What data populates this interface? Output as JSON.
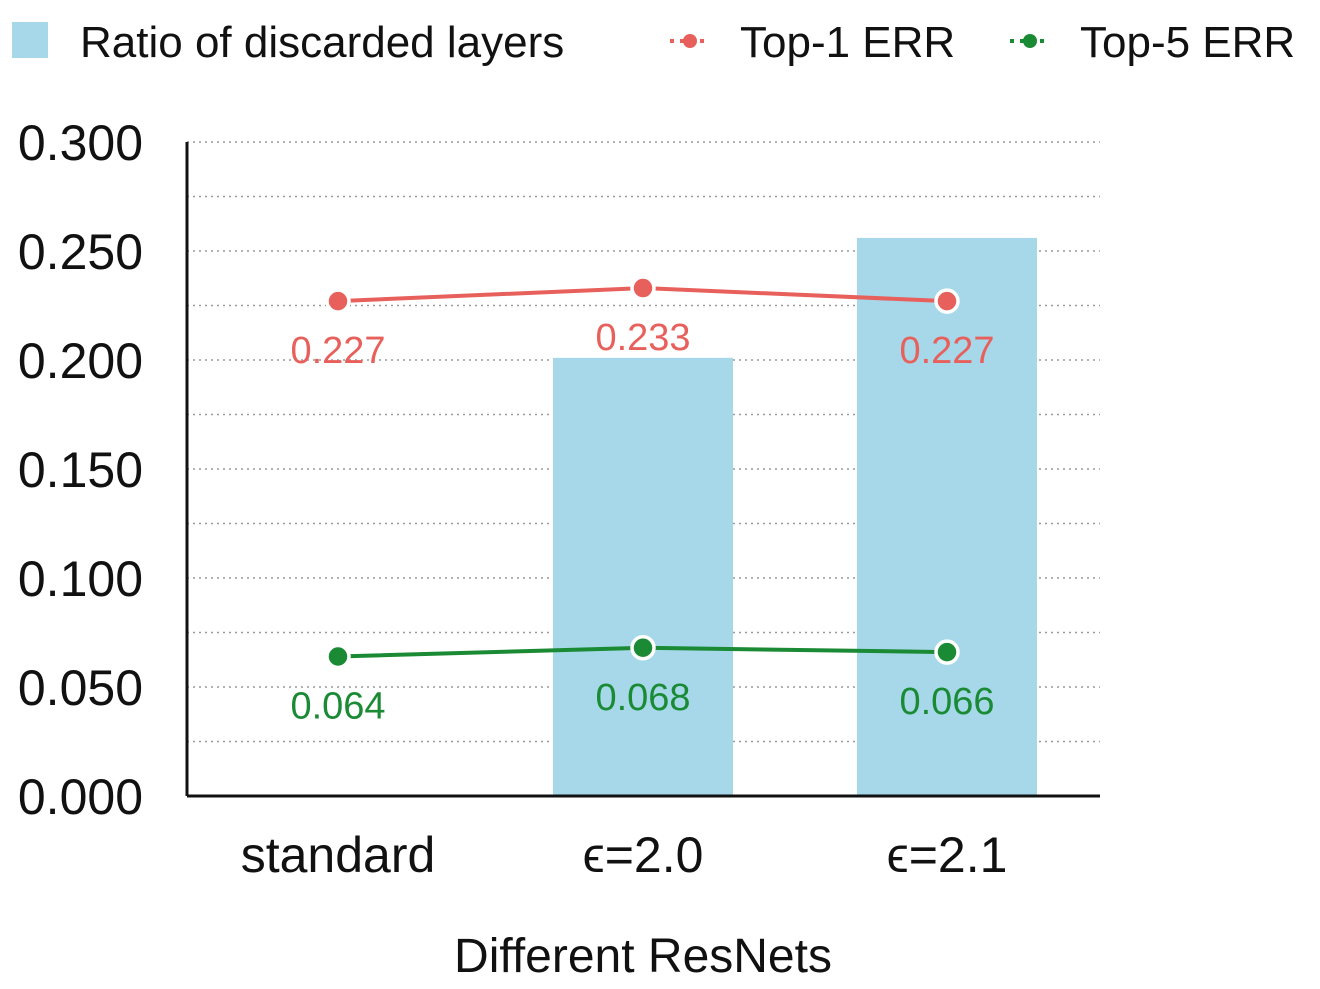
{
  "chart_data": {
    "type": "bar",
    "categories": [
      "standard",
      "ϵ=2.0",
      "ϵ=2.1"
    ],
    "xlabel": "Different ResNets",
    "ylabel": "",
    "ylim": [
      0,
      0.3
    ],
    "yticks": [
      "0.000",
      "0.050",
      "0.100",
      "0.150",
      "0.200",
      "0.250",
      "0.300"
    ],
    "grid": true,
    "legend_position": "top",
    "bars": {
      "name": "Ratio of discarded layers",
      "color": "#a6d8ea",
      "values": [
        0.0,
        0.201,
        0.256
      ]
    },
    "lines": [
      {
        "name": "Top-1 ERR",
        "color": "#e8605c",
        "values": [
          0.227,
          0.233,
          0.227
        ],
        "labels": [
          "0.227",
          "0.233",
          "0.227"
        ]
      },
      {
        "name": "Top-5 ERR",
        "color": "#1a8a34",
        "values": [
          0.064,
          0.068,
          0.066
        ],
        "labels": [
          "0.064",
          "0.068",
          "0.066"
        ]
      }
    ]
  }
}
